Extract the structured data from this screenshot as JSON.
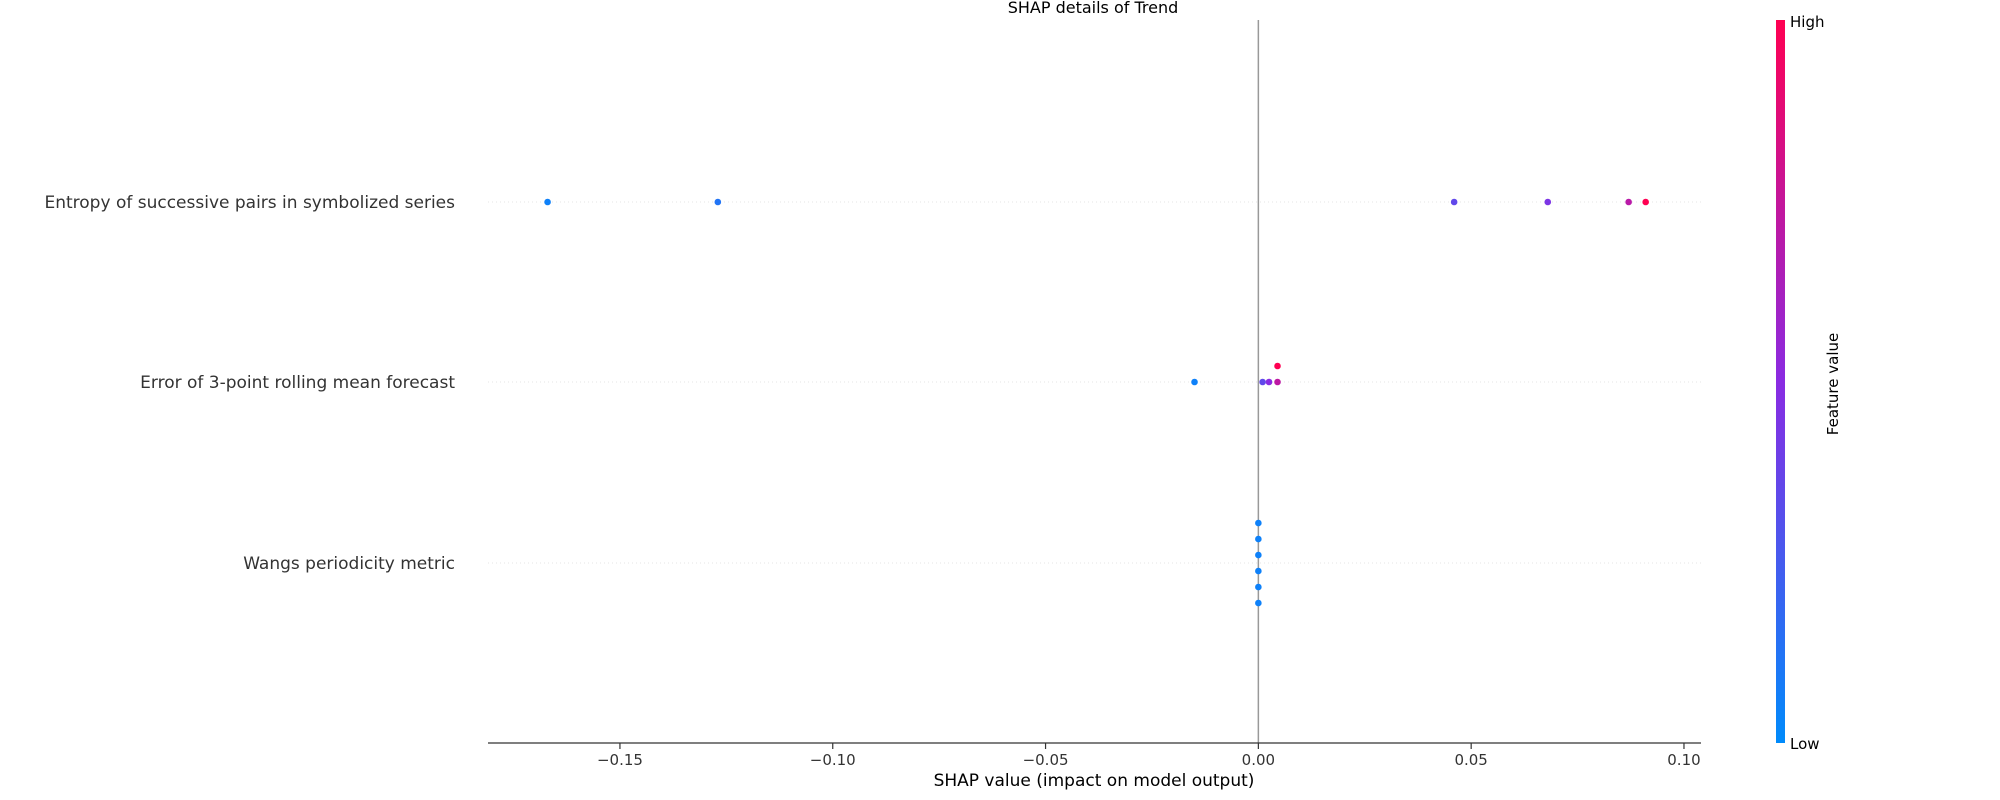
{
  "chart_data": {
    "type": "scatter",
    "title": "SHAP details of Trend",
    "xlabel": "SHAP value (impact on model output)",
    "xlim": [
      -0.181,
      0.104
    ],
    "xticks": [
      -0.15,
      -0.1,
      -0.05,
      0.0,
      0.05,
      0.1
    ],
    "xtick_labels": [
      "−0.15",
      "−0.10",
      "−0.05",
      "0.00",
      "0.05",
      "0.10"
    ],
    "features": [
      {
        "name": "Entropy of successive pairs in symbolized series",
        "points": [
          {
            "x": -0.167,
            "offset": 0,
            "value": 0.05
          },
          {
            "x": -0.127,
            "offset": 0,
            "value": 0.12
          },
          {
            "x": 0.046,
            "offset": 0,
            "value": 0.35
          },
          {
            "x": 0.068,
            "offset": 0,
            "value": 0.45
          },
          {
            "x": 0.087,
            "offset": 0,
            "value": 0.7
          },
          {
            "x": 0.091,
            "offset": 0,
            "value": 1.0
          }
        ]
      },
      {
        "name": "Error of 3-point rolling mean forecast",
        "points": [
          {
            "x": -0.015,
            "offset": 0,
            "value": 0.05
          },
          {
            "x": 0.001,
            "offset": 0,
            "value": 0.35
          },
          {
            "x": 0.0025,
            "offset": 0,
            "value": 0.5
          },
          {
            "x": 0.0045,
            "offset": 0,
            "value": 0.72
          },
          {
            "x": 0.0045,
            "offset": 1,
            "value": 1.0
          }
        ]
      },
      {
        "name": "Wangs periodicity metric",
        "points": [
          {
            "x": 0.0,
            "offset": 2.5,
            "value": 0.05
          },
          {
            "x": 0.0,
            "offset": 1.5,
            "value": 0.05
          },
          {
            "x": 0.0,
            "offset": 0.5,
            "value": 0.05
          },
          {
            "x": 0.0,
            "offset": -0.5,
            "value": 0.05
          },
          {
            "x": 0.0,
            "offset": -1.5,
            "value": 0.05
          },
          {
            "x": 0.0,
            "offset": -2.5,
            "value": 0.05
          }
        ]
      }
    ],
    "colorbar": {
      "label": "Feature value",
      "high_label": "High",
      "low_label": "Low",
      "low_color": "#008bfb",
      "mid_color": "#8a2be2",
      "high_color": "#ff0052"
    },
    "grid": false
  }
}
